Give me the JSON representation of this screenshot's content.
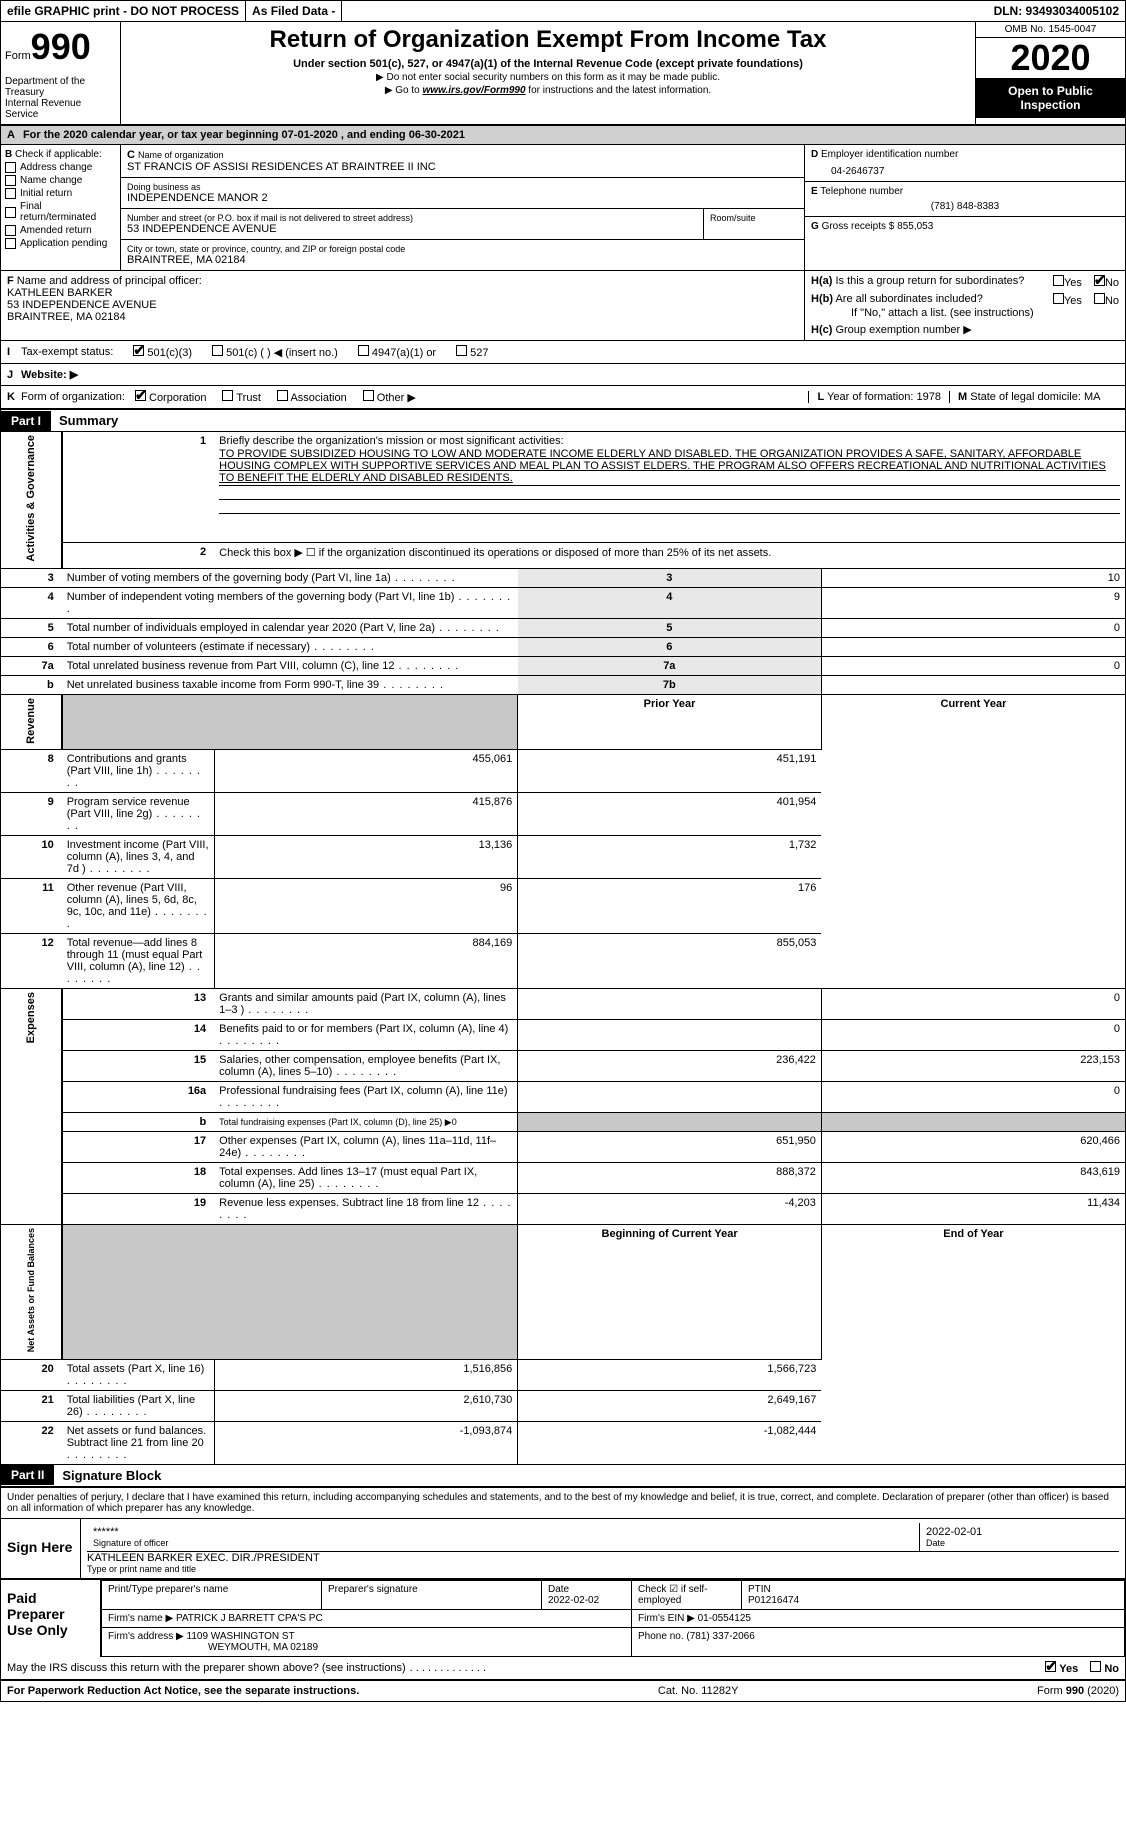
{
  "colors": {
    "black": "#000000",
    "white": "#ffffff",
    "gray_bg": "#d0d0d0",
    "gray_cell": "#c8c8c8",
    "label_bg": "#e8e8e8"
  },
  "topbar": {
    "efile": "efile GRAPHIC print - DO NOT PROCESS",
    "asfiled": "As Filed Data -",
    "dln": "DLN: 93493034005102"
  },
  "header": {
    "form_prefix": "Form",
    "form_number": "990",
    "dept": "Department of the Treasury",
    "irs": "Internal Revenue Service",
    "title": "Return of Organization Exempt From Income Tax",
    "subtitle": "Under section 501(c), 527, or 4947(a)(1) of the Internal Revenue Code (except private foundations)",
    "note1": "▶ Do not enter social security numbers on this form as it may be made public.",
    "note2_prefix": "▶ Go to ",
    "note2_link": "www.irs.gov/Form990",
    "note2_suffix": " for instructions and the latest information.",
    "omb": "OMB No. 1545-0047",
    "year": "2020",
    "open_public": "Open to Public Inspection"
  },
  "rowA": {
    "label": "A",
    "text": "For the 2020 calendar year, or tax year beginning 07-01-2020   , and ending 06-30-2021"
  },
  "sectionB": {
    "label": "B",
    "check_if": "Check if applicable:",
    "items": [
      {
        "label": "Address change",
        "checked": false
      },
      {
        "label": "Name change",
        "checked": false
      },
      {
        "label": "Initial return",
        "checked": false
      },
      {
        "label": "Final return/terminated",
        "checked": false
      },
      {
        "label": "Amended return",
        "checked": false
      },
      {
        "label": "Application pending",
        "checked": false
      }
    ]
  },
  "sectionC": {
    "label": "C",
    "name_label": "Name of organization",
    "name": "ST FRANCIS OF ASSISI RESIDENCES AT BRAINTREE II INC",
    "dba_label": "Doing business as",
    "dba": "INDEPENDENCE MANOR 2",
    "addr_label": "Number and street (or P.O. box if mail is not delivered to street address)",
    "addr": "53 INDEPENDENCE AVENUE",
    "room_label": "Room/suite",
    "city_label": "City or town, state or province, country, and ZIP or foreign postal code",
    "city": "BRAINTREE, MA  02184"
  },
  "sectionD": {
    "label": "D",
    "ein_label": "Employer identification number",
    "ein": "04-2646737"
  },
  "sectionE": {
    "label": "E",
    "tel_label": "Telephone number",
    "tel": "(781) 848-8383"
  },
  "sectionG": {
    "label": "G",
    "gross_label": "Gross receipts $",
    "gross": "855,053"
  },
  "sectionF": {
    "label": "F",
    "officer_label": "Name and address of principal officer:",
    "officer": "KATHLEEN BARKER\n53 INDEPENDENCE AVENUE\nBRAINTREE, MA  02184"
  },
  "sectionH": {
    "a_label": "H(a)",
    "a_text": "Is this a group return for subordinates?",
    "a_yes": false,
    "a_no": true,
    "b_label": "H(b)",
    "b_text": "Are all subordinates included?",
    "b_note": "If \"No,\" attach a list. (see instructions)",
    "c_label": "H(c)",
    "c_text": "Group exemption number ▶"
  },
  "rowI": {
    "label": "I",
    "text": "Tax-exempt status:",
    "opts": [
      {
        "label": "501(c)(3)",
        "checked": true
      },
      {
        "label": "501(c) (  ) ◀ (insert no.)",
        "checked": false
      },
      {
        "label": "4947(a)(1) or",
        "checked": false
      },
      {
        "label": "527",
        "checked": false
      }
    ]
  },
  "rowJ": {
    "label": "J",
    "text": "Website: ▶"
  },
  "rowK": {
    "label": "K",
    "text": "Form of organization:",
    "opts": [
      {
        "label": "Corporation",
        "checked": true
      },
      {
        "label": "Trust",
        "checked": false
      },
      {
        "label": "Association",
        "checked": false
      },
      {
        "label": "Other ▶",
        "checked": false
      }
    ]
  },
  "rowL": {
    "label": "L",
    "text": "Year of formation: 1978"
  },
  "rowM": {
    "label": "M",
    "text": "State of legal domicile: MA"
  },
  "partI": {
    "badge": "Part I",
    "title": "Summary"
  },
  "summary": {
    "q1_label": "1",
    "q1_text": "Briefly describe the organization's mission or most significant activities:",
    "q1_mission": "TO PROVIDE SUBSIDIZED HOUSING TO LOW AND MODERATE INCOME ELDERLY AND DISABLED. THE ORGANIZATION PROVIDES A SAFE, SANITARY, AFFORDABLE HOUSING COMPLEX WITH SUPPORTIVE SERVICES AND MEAL PLAN TO ASSIST ELDERS. THE PROGRAM ALSO OFFERS RECREATIONAL AND NUTRITIONAL ACTIVITIES TO BENEFIT THE ELDERLY AND DISABLED RESIDENTS.",
    "q2_label": "2",
    "q2_text": "Check this box ▶ ☐ if the organization discontinued its operations or disposed of more than 25% of its net assets.",
    "rows_single": [
      {
        "n": "3",
        "text": "Number of voting members of the governing body (Part VI, line 1a)",
        "box": "3",
        "val": "10"
      },
      {
        "n": "4",
        "text": "Number of independent voting members of the governing body (Part VI, line 1b)",
        "box": "4",
        "val": "9"
      },
      {
        "n": "5",
        "text": "Total number of individuals employed in calendar year 2020 (Part V, line 2a)",
        "box": "5",
        "val": "0"
      },
      {
        "n": "6",
        "text": "Total number of volunteers (estimate if necessary)",
        "box": "6",
        "val": ""
      },
      {
        "n": "7a",
        "text": "Total unrelated business revenue from Part VIII, column (C), line 12",
        "box": "7a",
        "val": "0"
      },
      {
        "n": "b",
        "text": "Net unrelated business taxable income from Form 990-T, line 39",
        "box": "7b",
        "val": ""
      }
    ],
    "col_hdr_prior": "Prior Year",
    "col_hdr_current": "Current Year",
    "revenue_rows": [
      {
        "n": "8",
        "text": "Contributions and grants (Part VIII, line 1h)",
        "prior": "455,061",
        "curr": "451,191"
      },
      {
        "n": "9",
        "text": "Program service revenue (Part VIII, line 2g)",
        "prior": "415,876",
        "curr": "401,954"
      },
      {
        "n": "10",
        "text": "Investment income (Part VIII, column (A), lines 3, 4, and 7d )",
        "prior": "13,136",
        "curr": "1,732"
      },
      {
        "n": "11",
        "text": "Other revenue (Part VIII, column (A), lines 5, 6d, 8c, 9c, 10c, and 11e)",
        "prior": "96",
        "curr": "176"
      },
      {
        "n": "12",
        "text": "Total revenue—add lines 8 through 11 (must equal Part VIII, column (A), line 12)",
        "prior": "884,169",
        "curr": "855,053"
      }
    ],
    "expense_rows": [
      {
        "n": "13",
        "text": "Grants and similar amounts paid (Part IX, column (A), lines 1–3 )",
        "prior": "",
        "curr": "0"
      },
      {
        "n": "14",
        "text": "Benefits paid to or for members (Part IX, column (A), line 4)",
        "prior": "",
        "curr": "0"
      },
      {
        "n": "15",
        "text": "Salaries, other compensation, employee benefits (Part IX, column (A), lines 5–10)",
        "prior": "236,422",
        "curr": "223,153"
      },
      {
        "n": "16a",
        "text": "Professional fundraising fees (Part IX, column (A), line 11e)",
        "prior": "",
        "curr": "0"
      },
      {
        "n": "b",
        "text": "Total fundraising expenses (Part IX, column (D), line 25) ▶0",
        "prior": null,
        "curr": null,
        "gray": true
      },
      {
        "n": "17",
        "text": "Other expenses (Part IX, column (A), lines 11a–11d, 11f–24e)",
        "prior": "651,950",
        "curr": "620,466"
      },
      {
        "n": "18",
        "text": "Total expenses. Add lines 13–17 (must equal Part IX, column (A), line 25)",
        "prior": "888,372",
        "curr": "843,619"
      },
      {
        "n": "19",
        "text": "Revenue less expenses. Subtract line 18 from line 12",
        "prior": "-4,203",
        "curr": "11,434"
      }
    ],
    "col_hdr_beg": "Beginning of Current Year",
    "col_hdr_end": "End of Year",
    "net_rows": [
      {
        "n": "20",
        "text": "Total assets (Part X, line 16)",
        "prior": "1,516,856",
        "curr": "1,566,723"
      },
      {
        "n": "21",
        "text": "Total liabilities (Part X, line 26)",
        "prior": "2,610,730",
        "curr": "2,649,167"
      },
      {
        "n": "22",
        "text": "Net assets or fund balances. Subtract line 21 from line 20",
        "prior": "-1,093,874",
        "curr": "-1,082,444"
      }
    ],
    "vlabels": {
      "ag": "Activities & Governance",
      "rev": "Revenue",
      "exp": "Expenses",
      "net": "Net Assets or Fund Balances"
    }
  },
  "partII": {
    "badge": "Part II",
    "title": "Signature Block"
  },
  "sig": {
    "decl": "Under penalties of perjury, I declare that I have examined this return, including accompanying schedules and statements, and to the best of my knowledge and belief, it is true, correct, and complete. Declaration of preparer (other than officer) is based on all information of which preparer has any knowledge.",
    "sign_here": "Sign Here",
    "stars": "******",
    "sig_officer": "Signature of officer",
    "date": "2022-02-01",
    "date_label": "Date",
    "name_title": "KATHLEEN BARKER  EXEC. DIR./PRESIDENT",
    "type_name": "Type or print name and title"
  },
  "prep": {
    "label": "Paid Preparer Use Only",
    "print_name_label": "Print/Type preparer's name",
    "prep_sig_label": "Preparer's signature",
    "date_label": "Date",
    "date": "2022-02-02",
    "check_se_label": "Check ☑ if self-employed",
    "ptin_label": "PTIN",
    "ptin": "P01216474",
    "firm_name_label": "Firm's name    ▶",
    "firm_name": "PATRICK J BARRETT CPA'S PC",
    "firm_ein_label": "Firm's EIN ▶",
    "firm_ein": "01-0554125",
    "firm_addr_label": "Firm's address ▶",
    "firm_addr": "1109 WASHINGTON ST",
    "firm_city": "WEYMOUTH, MA  02189",
    "phone_label": "Phone no.",
    "phone": "(781) 337-2066"
  },
  "discuss": {
    "text": "May the IRS discuss this return with the preparer shown above? (see instructions)",
    "yes": true,
    "no": false
  },
  "footer": {
    "left": "For Paperwork Reduction Act Notice, see the separate instructions.",
    "mid": "Cat. No. 11282Y",
    "right_prefix": "Form ",
    "right_form": "990",
    "right_suffix": " (2020)"
  }
}
